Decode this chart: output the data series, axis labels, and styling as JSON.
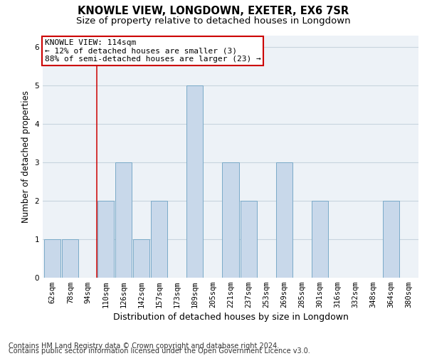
{
  "title": "KNOWLE VIEW, LONGDOWN, EXETER, EX6 7SR",
  "subtitle": "Size of property relative to detached houses in Longdown",
  "xlabel": "Distribution of detached houses by size in Longdown",
  "ylabel": "Number of detached properties",
  "footer1": "Contains HM Land Registry data © Crown copyright and database right 2024.",
  "footer2": "Contains public sector information licensed under the Open Government Licence v3.0.",
  "categories": [
    "62sqm",
    "78sqm",
    "94sqm",
    "110sqm",
    "126sqm",
    "142sqm",
    "157sqm",
    "173sqm",
    "189sqm",
    "205sqm",
    "221sqm",
    "237sqm",
    "253sqm",
    "269sqm",
    "285sqm",
    "301sqm",
    "316sqm",
    "332sqm",
    "348sqm",
    "364sqm",
    "380sqm"
  ],
  "values": [
    1,
    1,
    0,
    2,
    3,
    1,
    2,
    0,
    5,
    0,
    3,
    2,
    0,
    3,
    0,
    2,
    0,
    0,
    0,
    2,
    0
  ],
  "bar_color": "#c8d8ea",
  "bar_edge_color": "#7aaac8",
  "vline_x_index": 2.5,
  "vline_color": "#cc0000",
  "annotation_text": "KNOWLE VIEW: 114sqm\n← 12% of detached houses are smaller (3)\n88% of semi-detached houses are larger (23) →",
  "annotation_box_color": "white",
  "annotation_box_edge_color": "#cc0000",
  "ylim": [
    0,
    6.3
  ],
  "yticks": [
    0,
    1,
    2,
    3,
    4,
    5,
    6
  ],
  "grid_color": "#c8d4de",
  "background_color": "#edf2f7",
  "title_fontsize": 10.5,
  "subtitle_fontsize": 9.5,
  "xlabel_fontsize": 9,
  "ylabel_fontsize": 8.5,
  "tick_fontsize": 7.5,
  "footer_fontsize": 7,
  "ann_fontsize": 8
}
